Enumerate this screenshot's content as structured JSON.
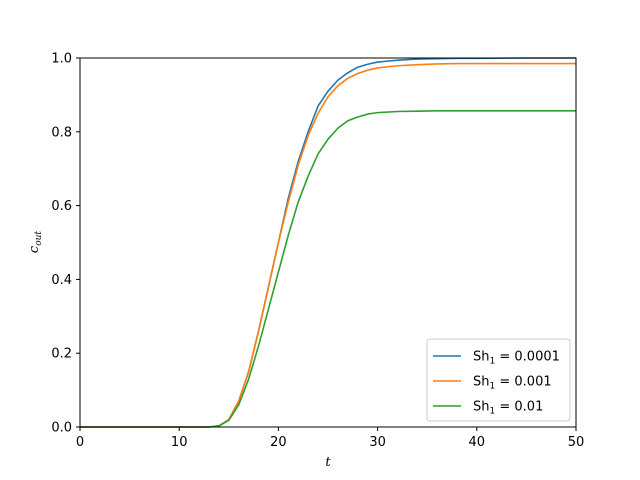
{
  "chart_data": {
    "type": "line",
    "title": "",
    "xlabel": "t",
    "ylabel": "c",
    "ylabel_subscript": "out",
    "xlim": [
      0,
      50
    ],
    "ylim": [
      0,
      1
    ],
    "xticks": [
      0,
      10,
      20,
      30,
      40,
      50
    ],
    "yticks": [
      0.0,
      0.2,
      0.4,
      0.6,
      0.8,
      1.0
    ],
    "xtick_labels": [
      "0",
      "10",
      "20",
      "30",
      "40",
      "50"
    ],
    "ytick_labels": [
      "0.0",
      "0.2",
      "0.4",
      "0.6",
      "0.8",
      "1.0"
    ],
    "grid": false,
    "legend_position": "lower-right",
    "x": [
      0,
      5,
      10,
      13,
      14,
      15,
      16,
      17,
      18,
      19,
      20,
      21,
      22,
      23,
      24,
      25,
      26,
      27,
      28,
      29,
      30,
      32,
      34,
      36,
      38,
      40,
      45,
      50
    ],
    "series": [
      {
        "name": "Sh",
        "name_subscript": "1",
        "name_value": " = 0.0001",
        "color": "#1f77b4",
        "values": [
          0,
          0,
          0,
          0,
          0.003,
          0.02,
          0.07,
          0.15,
          0.26,
          0.38,
          0.5,
          0.62,
          0.72,
          0.8,
          0.87,
          0.91,
          0.94,
          0.96,
          0.975,
          0.983,
          0.989,
          0.994,
          0.997,
          0.998,
          0.999,
          0.999,
          1.0,
          1.0
        ]
      },
      {
        "name": "Sh",
        "name_subscript": "1",
        "name_value": " = 0.001",
        "color": "#ff7f0e",
        "values": [
          0,
          0,
          0,
          0,
          0.003,
          0.02,
          0.07,
          0.15,
          0.26,
          0.38,
          0.5,
          0.61,
          0.71,
          0.79,
          0.85,
          0.895,
          0.925,
          0.945,
          0.958,
          0.967,
          0.973,
          0.979,
          0.982,
          0.984,
          0.985,
          0.985,
          0.985,
          0.985
        ]
      },
      {
        "name": "Sh",
        "name_subscript": "1",
        "name_value": " = 0.01",
        "color": "#2ca02c",
        "values": [
          0,
          0,
          0,
          0,
          0.003,
          0.018,
          0.06,
          0.13,
          0.22,
          0.32,
          0.42,
          0.52,
          0.61,
          0.68,
          0.74,
          0.78,
          0.81,
          0.83,
          0.84,
          0.848,
          0.852,
          0.855,
          0.856,
          0.857,
          0.857,
          0.857,
          0.857,
          0.857
        ]
      }
    ]
  }
}
